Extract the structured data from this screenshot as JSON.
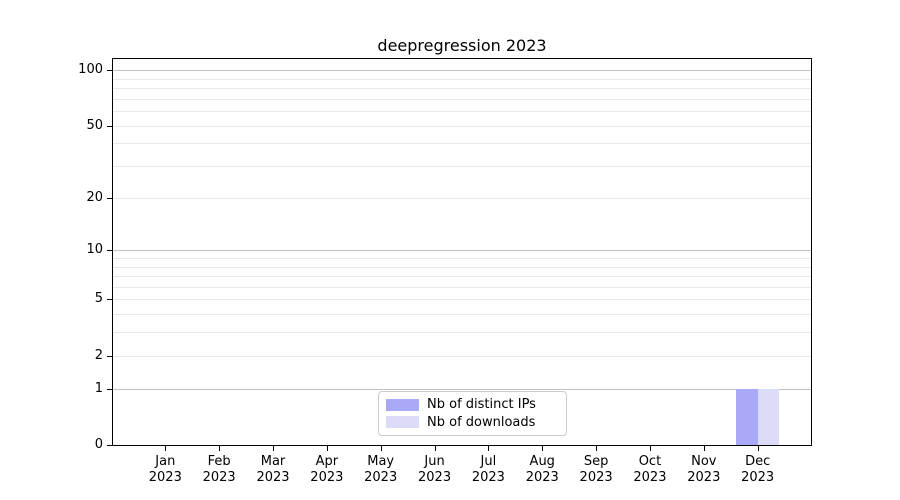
{
  "chart_data": {
    "type": "bar",
    "title": "deepregression 2023",
    "yscale": "log1p",
    "grid": true,
    "ylim": [
      0,
      115
    ],
    "yticks": [
      0,
      1,
      2,
      5,
      10,
      20,
      50,
      100
    ],
    "major_gridlines": [
      1,
      10,
      100
    ],
    "minor_gridlines": [
      2,
      3,
      4,
      5,
      6,
      7,
      8,
      9,
      20,
      30,
      40,
      50,
      60,
      70,
      80,
      90
    ],
    "categories": [
      {
        "month": "Jan",
        "year": "2023"
      },
      {
        "month": "Feb",
        "year": "2023"
      },
      {
        "month": "Mar",
        "year": "2023"
      },
      {
        "month": "Apr",
        "year": "2023"
      },
      {
        "month": "May",
        "year": "2023"
      },
      {
        "month": "Jun",
        "year": "2023"
      },
      {
        "month": "Jul",
        "year": "2023"
      },
      {
        "month": "Aug",
        "year": "2023"
      },
      {
        "month": "Sep",
        "year": "2023"
      },
      {
        "month": "Oct",
        "year": "2023"
      },
      {
        "month": "Nov",
        "year": "2023"
      },
      {
        "month": "Dec",
        "year": "2023"
      }
    ],
    "series": [
      {
        "name": "Nb of distinct IPs",
        "color": "#a9a9f8",
        "values": [
          0,
          0,
          0,
          0,
          0,
          0,
          0,
          0,
          0,
          0,
          0,
          1
        ]
      },
      {
        "name": "Nb of downloads",
        "color": "#dcdcf8",
        "values": [
          0,
          0,
          0,
          0,
          0,
          0,
          0,
          0,
          0,
          0,
          0,
          1
        ]
      }
    ],
    "legend_position": "lower-center"
  },
  "colors": {
    "major_grid": "#c3c3c3",
    "minor_grid": "#e9e9e9",
    "spine": "#000000",
    "text": "#000000",
    "legend_border": "#cccccc"
  }
}
